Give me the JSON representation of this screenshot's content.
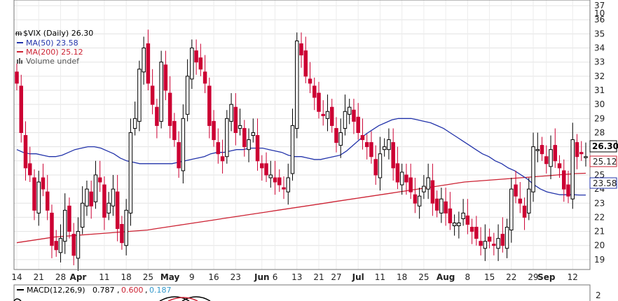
{
  "chart_data": {
    "type": "candlestick",
    "symbol_label": "$VIX (Daily) 26.30",
    "legend": [
      {
        "text": "MA(50) 23.58",
        "color": "#2233aa"
      },
      {
        "text": "MA(200) 25.12",
        "color": "#cc2233"
      },
      {
        "text": "Volume undef",
        "color": "#555555"
      }
    ],
    "y_ticks": [
      19,
      20,
      21,
      22,
      23,
      24,
      25,
      26,
      27,
      28,
      29,
      30,
      31,
      32,
      33,
      34,
      35,
      36,
      37
    ],
    "y_top_partial": "10",
    "ylim": [
      18.3,
      37.4
    ],
    "x_ticks": [
      {
        "label": "14",
        "x": 0
      },
      {
        "label": "21",
        "x": 5
      },
      {
        "label": "28",
        "x": 10
      },
      {
        "label": "Apr",
        "x": 14,
        "month": true
      },
      {
        "label": "11",
        "x": 20
      },
      {
        "label": "18",
        "x": 25
      },
      {
        "label": "25",
        "x": 30
      },
      {
        "label": "May",
        "x": 35,
        "month": true
      },
      {
        "label": "9",
        "x": 40
      },
      {
        "label": "16",
        "x": 45
      },
      {
        "label": "23",
        "x": 50
      },
      {
        "label": "Jun",
        "x": 56,
        "month": true
      },
      {
        "label": "6",
        "x": 59
      },
      {
        "label": "13",
        "x": 64
      },
      {
        "label": "21",
        "x": 69
      },
      {
        "label": "27",
        "x": 73
      },
      {
        "label": "Jul",
        "x": 78,
        "month": true
      },
      {
        "label": "11",
        "x": 83
      },
      {
        "label": "18",
        "x": 88
      },
      {
        "label": "25",
        "x": 93
      },
      {
        "label": "Aug",
        "x": 98,
        "month": true
      },
      {
        "label": "8",
        "x": 103
      },
      {
        "label": "15",
        "x": 108
      },
      {
        "label": "22",
        "x": 113
      },
      {
        "label": "29",
        "x": 118
      },
      {
        "label": "Sep",
        "x": 121,
        "month": true
      },
      {
        "label": "12",
        "x": 127
      }
    ],
    "close": [
      31.5,
      28,
      25.5,
      25,
      22.5,
      24.5,
      24,
      22.5,
      20,
      19.7,
      20.5,
      22.5,
      21,
      19.3,
      21,
      23,
      24,
      22.8,
      25,
      24.5,
      22,
      23,
      24,
      21.2,
      20.2,
      22.5,
      28,
      29,
      32.5,
      34,
      31.5,
      30,
      28.5,
      33,
      31,
      28.5,
      27.5,
      25.5,
      29,
      32,
      34,
      33,
      32.5,
      31.5,
      28.5,
      27.5,
      26.5,
      26,
      29,
      30,
      28,
      28.5,
      27,
      27.5,
      28,
      26,
      25.5,
      25,
      25,
      24.5,
      24.3,
      24,
      24.8,
      28.5,
      34.5,
      33.5,
      32,
      31.5,
      30.5,
      29.5,
      29.2,
      29.5,
      28.5,
      27.3,
      28,
      29.5,
      29.8,
      28.8,
      28,
      27.5,
      27,
      26.3,
      25,
      26.5,
      27,
      27.5,
      25.5,
      24.5,
      25.2,
      24.5,
      23.8,
      23,
      23.5,
      24.2,
      24.8,
      23,
      22.5,
      23.3,
      22.3,
      21.6,
      21.6,
      21.6,
      22.3,
      21.5,
      21,
      20.5,
      20,
      20.3,
      20.3,
      20,
      20.5,
      20,
      21.3,
      24,
      23.5,
      23,
      22,
      24,
      27,
      26.8,
      26.5,
      25.8,
      26.8,
      26,
      25.5,
      24,
      23.5,
      27.5,
      26.3,
      26.5,
      26.3
    ],
    "ma50": [
      26.8,
      26.6,
      26.5,
      26.5,
      26.4,
      26.3,
      26.3,
      26.4,
      26.6,
      26.8,
      26.9,
      27,
      27,
      26.9,
      26.7,
      26.5,
      26.2,
      26,
      25.9,
      25.8,
      25.8,
      25.8,
      25.8,
      25.8,
      25.8,
      25.9,
      26,
      26.1,
      26.2,
      26.3,
      26.5,
      26.6,
      26.6,
      26.7,
      26.8,
      26.8,
      26.9,
      26.9,
      26.9,
      26.8,
      26.7,
      26.6,
      26.4,
      26.3,
      26.3,
      26.2,
      26.1,
      26.1,
      26.2,
      26.3,
      26.4,
      26.7,
      27.1,
      27.5,
      27.9,
      28.2,
      28.5,
      28.7,
      28.9,
      29,
      29,
      29,
      28.9,
      28.8,
      28.7,
      28.5,
      28.3,
      28,
      27.7,
      27.4,
      27.1,
      26.8,
      26.5,
      26.3,
      26,
      25.8,
      25.5,
      25.3,
      25,
      24.7,
      24.3,
      24,
      23.8,
      23.7,
      23.6,
      23.6,
      23.6,
      23.58,
      23.58
    ],
    "ma200": [
      20.2,
      20.3,
      20.4,
      20.5,
      20.6,
      20.65,
      20.7,
      20.75,
      20.8,
      20.85,
      20.9,
      20.95,
      21,
      21.05,
      21.1,
      21.2,
      21.3,
      21.4,
      21.5,
      21.6,
      21.7,
      21.8,
      21.9,
      22,
      22.1,
      22.2,
      22.3,
      22.4,
      22.5,
      22.6,
      22.7,
      22.8,
      22.9,
      23,
      23.1,
      23.2,
      23.3,
      23.4,
      23.5,
      23.6,
      23.7,
      23.8,
      23.9,
      24,
      24.1,
      24.2,
      24.3,
      24.4,
      24.5,
      24.55,
      24.6,
      24.65,
      24.7,
      24.75,
      24.8,
      24.85,
      24.9,
      24.95,
      25,
      25.05,
      25.1,
      25.12
    ],
    "last_value_label": "26.30",
    "ma50_value_label": "23.58",
    "ma200_value_label": "25.12",
    "last_label_color": "#000000",
    "ma50_color": "#2233aa",
    "ma200_color": "#cc2233",
    "down_color": "#cc0033",
    "up_color": "#000000",
    "macd": {
      "label_prefix": "MACD(12,26,9)",
      "macd": "0.787",
      "signal": "0.600",
      "hist": "0.187",
      "signal_color": "#cc2233",
      "hist_color": "#3399cc",
      "y_tick": "2"
    }
  }
}
